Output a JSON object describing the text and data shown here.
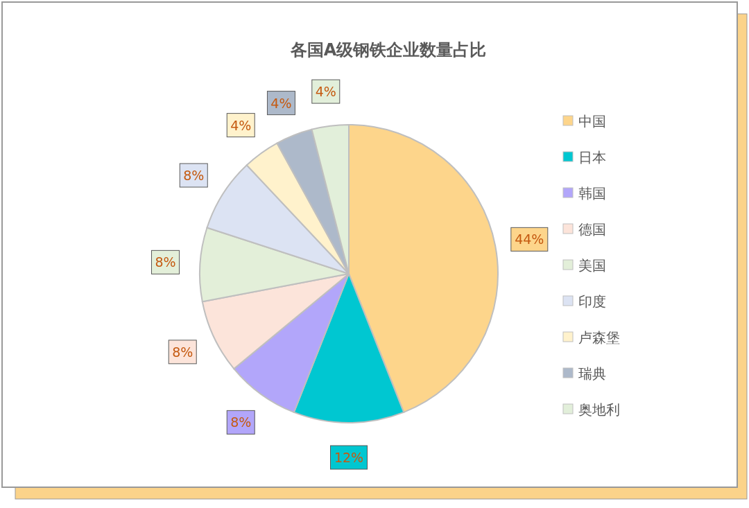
{
  "chart_data": {
    "type": "pie",
    "title": "各国A级钢铁企业数量占比",
    "categories": [
      "中国",
      "日本",
      "韩国",
      "德国",
      "美国",
      "印度",
      "卢森堡",
      "瑞典",
      "奥地利"
    ],
    "values": [
      44,
      12,
      8,
      8,
      8,
      8,
      4,
      4,
      4
    ],
    "value_labels": [
      "44%",
      "12%",
      "8%",
      "8%",
      "8%",
      "8%",
      "4%",
      "4%",
      "4%"
    ],
    "colors": [
      "#fdd58b",
      "#00c7d1",
      "#b2a6fa",
      "#fce4da",
      "#e3efd9",
      "#dce3f3",
      "#fff2cc",
      "#adb9ca",
      "#e2efda"
    ],
    "legend": "right"
  }
}
